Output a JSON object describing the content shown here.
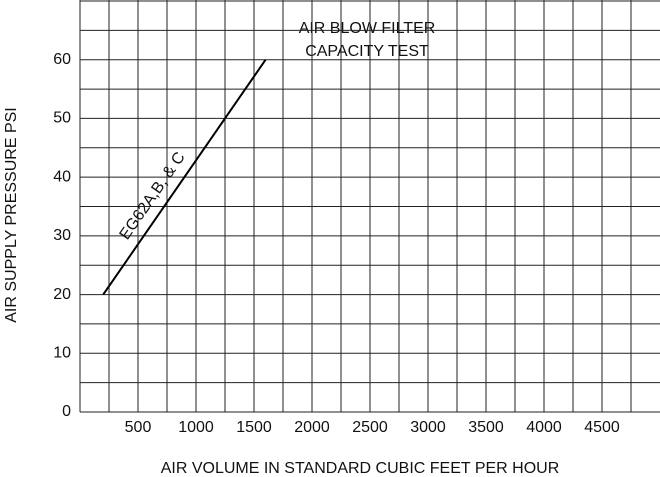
{
  "chart_data": {
    "type": "line",
    "title": [
      "AIR BLOW FILTER",
      "CAPACITY TEST"
    ],
    "x_label": "AIR VOLUME IN STANDARD CUBIC FEET PER HOUR",
    "y_label": "AIR SUPPLY PRESSURE PSI",
    "xlim": [
      0,
      5000
    ],
    "ylim": [
      0,
      70
    ],
    "xticks": [
      500,
      1000,
      1500,
      2000,
      2500,
      3000,
      3500,
      4000,
      4500
    ],
    "yticks": [
      0,
      10,
      20,
      30,
      40,
      50,
      60
    ],
    "xgrid": [
      250,
      500,
      750,
      1000,
      1250,
      1500,
      1750,
      2000,
      2250,
      2500,
      2750,
      3000,
      3250,
      3500,
      3750,
      4000,
      4250,
      4500,
      4750
    ],
    "ygrid": [
      5,
      10,
      15,
      20,
      25,
      30,
      35,
      40,
      45,
      50,
      55,
      60,
      65,
      70
    ],
    "grid": true,
    "series": [
      {
        "name": "EG62A,B, & C",
        "color": "#000000",
        "x": [
          200,
          1600
        ],
        "values": [
          20,
          60
        ]
      }
    ]
  }
}
